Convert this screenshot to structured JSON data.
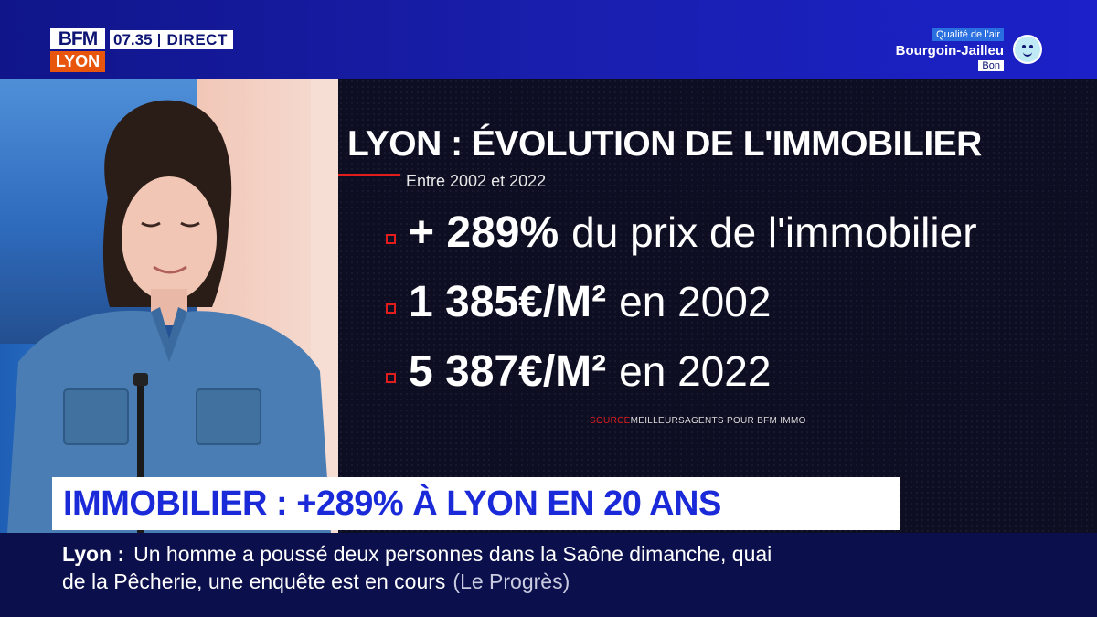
{
  "channel": {
    "logo_top": "BFM",
    "logo_bottom": "LYON",
    "time": "07.35",
    "live_label": "DIRECT"
  },
  "air_quality": {
    "label": "Qualité de l'air",
    "location": "Bourgoin-Jailleu",
    "level": "Bon",
    "icon": "smiley-face-icon",
    "color": "#bfeaf5"
  },
  "graphic": {
    "title": "LYON : ÉVOLUTION DE L'IMMOBILIER",
    "subtitle": "Entre 2002 et 2022",
    "items": [
      {
        "big": "+ 289%",
        "rest": "du prix de l'immobilier"
      },
      {
        "big": "1 385€/M²",
        "rest": "en 2002"
      },
      {
        "big": "5 387€/M²",
        "rest": "en 2022"
      }
    ],
    "source_prefix": "SOURCE",
    "source_text": "MEILLEURSAGENTS POUR BFM IMMO",
    "accent_color": "#e11d1d"
  },
  "headline": {
    "text": "IMMOBILIER : +289% À LYON EN 20 ANS",
    "color": "#1a2ad8"
  },
  "ticker": {
    "city": "Lyon :",
    "line1": "Un homme a poussé deux personnes dans la Saône dimanche, quai",
    "line2": "de la Pêcherie, une enquête est en cours",
    "source": "(Le Progrès)"
  }
}
